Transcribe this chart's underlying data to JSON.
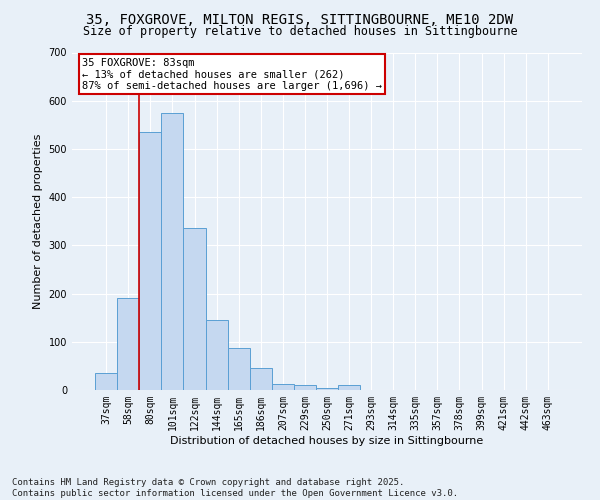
{
  "title_line1": "35, FOXGROVE, MILTON REGIS, SITTINGBOURNE, ME10 2DW",
  "title_line2": "Size of property relative to detached houses in Sittingbourne",
  "xlabel": "Distribution of detached houses by size in Sittingbourne",
  "ylabel": "Number of detached properties",
  "categories": [
    "37sqm",
    "58sqm",
    "80sqm",
    "101sqm",
    "122sqm",
    "144sqm",
    "165sqm",
    "186sqm",
    "207sqm",
    "229sqm",
    "250sqm",
    "271sqm",
    "293sqm",
    "314sqm",
    "335sqm",
    "357sqm",
    "378sqm",
    "399sqm",
    "421sqm",
    "442sqm",
    "463sqm"
  ],
  "values": [
    35,
    190,
    535,
    575,
    335,
    145,
    88,
    46,
    13,
    10,
    5,
    10,
    1,
    0,
    0,
    0,
    0,
    0,
    0,
    0,
    0
  ],
  "bar_color": "#c5d8f0",
  "bar_edge_color": "#5a9fd4",
  "highlight_color": "#cc0000",
  "annotation_title": "35 FOXGROVE: 83sqm",
  "annotation_line1": "← 13% of detached houses are smaller (262)",
  "annotation_line2": "87% of semi-detached houses are larger (1,696) →",
  "annotation_box_color": "#ffffff",
  "annotation_box_edge": "#cc0000",
  "ylim": [
    0,
    700
  ],
  "yticks": [
    0,
    100,
    200,
    300,
    400,
    500,
    600,
    700
  ],
  "background_color": "#e8f0f8",
  "grid_color": "#ffffff",
  "footer_line1": "Contains HM Land Registry data © Crown copyright and database right 2025.",
  "footer_line2": "Contains public sector information licensed under the Open Government Licence v3.0.",
  "title_fontsize": 10,
  "subtitle_fontsize": 8.5,
  "axis_label_fontsize": 8,
  "tick_fontsize": 7,
  "annotation_fontsize": 7.5,
  "footer_fontsize": 6.5
}
